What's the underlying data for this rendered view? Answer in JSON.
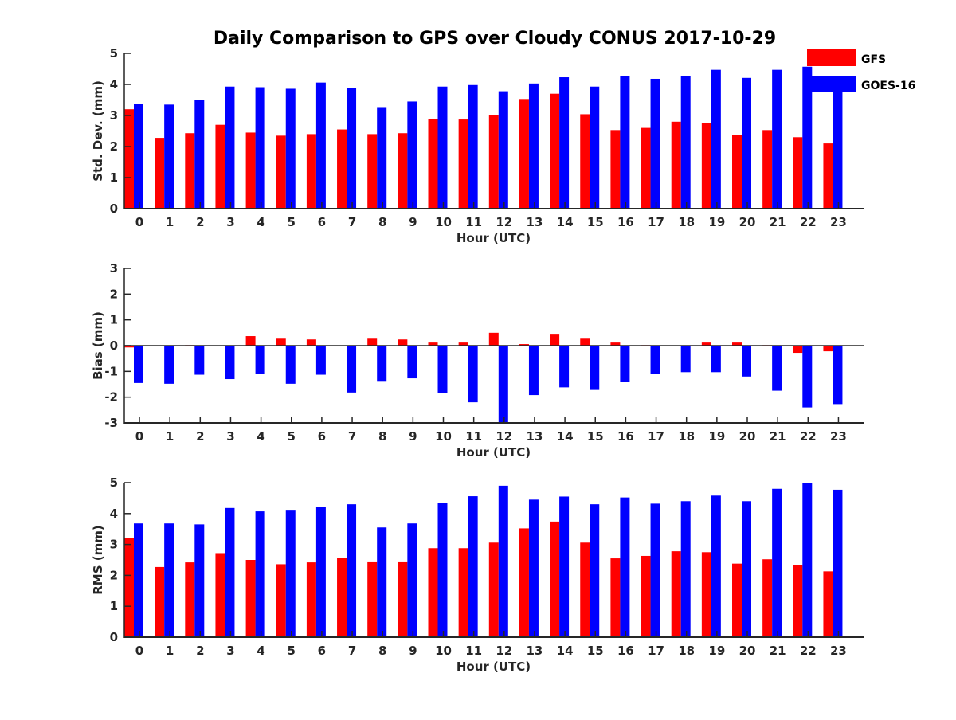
{
  "title": "Daily Comparison to GPS over Cloudy CONUS 2017-10-29",
  "colors": {
    "gfs": "#ff0000",
    "goes": "#0000ff",
    "axis": "#262626"
  },
  "legend": {
    "placement": "top-right",
    "items": [
      "GFS",
      "GOES-16"
    ]
  },
  "chart_data": [
    {
      "type": "bar",
      "xlabel": "Hour (UTC)",
      "ylabel": "Std. Dev. (mm)",
      "ylim": [
        0,
        5
      ],
      "yticks": [
        "0",
        "1",
        "2",
        "3",
        "4",
        "5"
      ],
      "categories": [
        "0",
        "1",
        "2",
        "3",
        "4",
        "5",
        "6",
        "7",
        "8",
        "9",
        "10",
        "11",
        "12",
        "13",
        "14",
        "15",
        "16",
        "17",
        "18",
        "19",
        "20",
        "21",
        "22",
        "23"
      ],
      "series": [
        {
          "name": "GFS",
          "values": [
            3.2,
            2.28,
            2.43,
            2.7,
            2.45,
            2.35,
            2.4,
            2.55,
            2.4,
            2.43,
            2.88,
            2.87,
            3.02,
            3.53,
            3.7,
            3.04,
            2.53,
            2.6,
            2.8,
            2.76,
            2.37,
            2.53,
            2.3,
            2.1
          ]
        },
        {
          "name": "GOES-16",
          "values": [
            3.37,
            3.35,
            3.5,
            3.93,
            3.91,
            3.86,
            4.06,
            3.88,
            3.27,
            3.45,
            3.93,
            3.98,
            3.78,
            4.03,
            4.23,
            3.93,
            4.28,
            4.18,
            4.26,
            4.47,
            4.21,
            4.47,
            4.57,
            4.05
          ]
        }
      ]
    },
    {
      "type": "bar",
      "xlabel": "Hour (UTC)",
      "ylabel": "Bias (mm)",
      "ylim": [
        -3,
        3
      ],
      "yticks": [
        "-3",
        "-2",
        "-1",
        "0",
        "1",
        "2",
        "3"
      ],
      "categories": [
        "0",
        "1",
        "2",
        "3",
        "4",
        "5",
        "6",
        "7",
        "8",
        "9",
        "10",
        "11",
        "12",
        "13",
        "14",
        "15",
        "16",
        "17",
        "18",
        "19",
        "20",
        "21",
        "22",
        "23"
      ],
      "series": [
        {
          "name": "GFS",
          "values": [
            -0.07,
            -0.02,
            0.02,
            -0.03,
            0.37,
            0.27,
            0.24,
            -0.02,
            0.27,
            0.24,
            0.12,
            0.12,
            0.5,
            0.06,
            0.46,
            0.27,
            0.12,
            0.02,
            -0.03,
            0.12,
            0.12,
            0.02,
            -0.28,
            -0.22
          ]
        },
        {
          "name": "GOES-16",
          "values": [
            -1.45,
            -1.48,
            -1.13,
            -1.3,
            -1.1,
            -1.48,
            -1.13,
            -1.82,
            -1.37,
            -1.27,
            -1.85,
            -2.2,
            -3.0,
            -1.92,
            -1.62,
            -1.72,
            -1.42,
            -1.1,
            -1.03,
            -1.03,
            -1.2,
            -1.75,
            -2.4,
            -2.27
          ]
        }
      ]
    },
    {
      "type": "bar",
      "xlabel": "Hour (UTC)",
      "ylabel": "RMS (mm)",
      "ylim": [
        0,
        5
      ],
      "yticks": [
        "0",
        "1",
        "2",
        "3",
        "4",
        "5"
      ],
      "categories": [
        "0",
        "1",
        "2",
        "3",
        "4",
        "5",
        "6",
        "7",
        "8",
        "9",
        "10",
        "11",
        "12",
        "13",
        "14",
        "15",
        "16",
        "17",
        "18",
        "19",
        "20",
        "21",
        "22",
        "23"
      ],
      "series": [
        {
          "name": "GFS",
          "values": [
            3.22,
            2.27,
            2.42,
            2.72,
            2.5,
            2.36,
            2.42,
            2.57,
            2.45,
            2.45,
            2.88,
            2.88,
            3.06,
            3.52,
            3.74,
            3.06,
            2.55,
            2.63,
            2.78,
            2.75,
            2.38,
            2.52,
            2.33,
            2.13
          ]
        },
        {
          "name": "GOES-16",
          "values": [
            3.68,
            3.68,
            3.65,
            4.18,
            4.07,
            4.12,
            4.22,
            4.3,
            3.55,
            3.68,
            4.35,
            4.56,
            4.9,
            4.45,
            4.55,
            4.3,
            4.52,
            4.32,
            4.4,
            4.58,
            4.4,
            4.8,
            5.0,
            4.77
          ]
        }
      ]
    }
  ]
}
